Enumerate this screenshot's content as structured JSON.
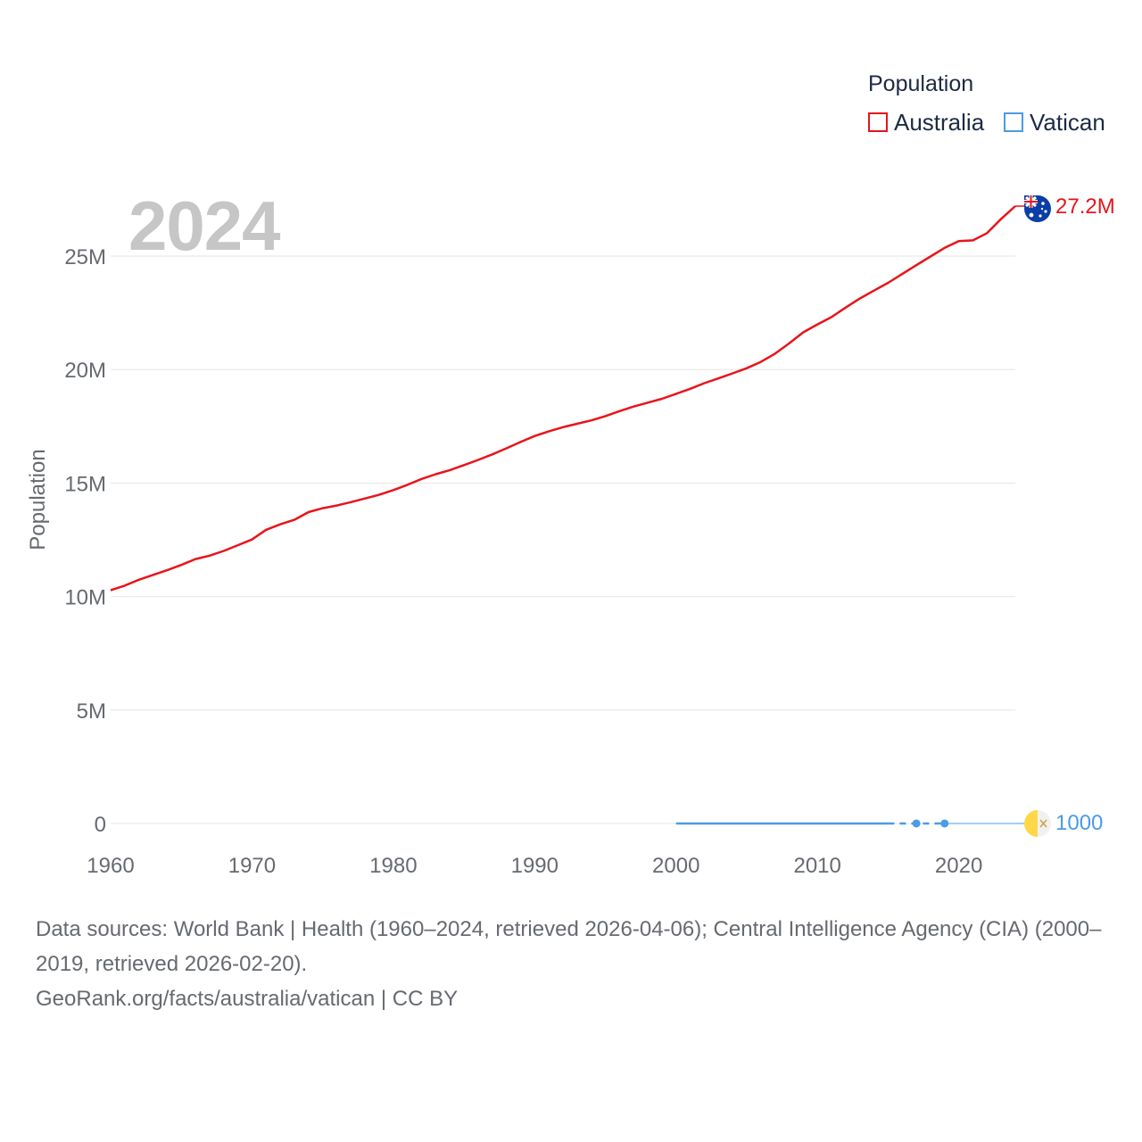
{
  "legend": {
    "title": "Population",
    "items": [
      {
        "label": "Australia",
        "color": "#e8141b"
      },
      {
        "label": "Vatican",
        "color": "#4a9be8"
      }
    ]
  },
  "year_label": "2024",
  "end_labels": {
    "australia": "27.2M",
    "vatican": "1000"
  },
  "footer": {
    "sources": "Data sources: World Bank | Health (1960–2024, retrieved 2026-04-06); Central Intelligence Agency (CIA) (2000–2019, retrieved 2026-02-20).",
    "link": "GeoRank.org/facts/australia/vatican | CC BY"
  },
  "chart_data": {
    "type": "line",
    "title": "",
    "xlabel": "",
    "ylabel": "Population",
    "xlim": [
      1960,
      2024
    ],
    "ylim": [
      0,
      27500000
    ],
    "x_ticks": [
      1960,
      1970,
      1980,
      1990,
      2000,
      2010,
      2020
    ],
    "x_tick_labels": [
      "1960",
      "1970",
      "1980",
      "1990",
      "2000",
      "2010",
      "2020"
    ],
    "y_ticks": [
      0,
      5000000,
      10000000,
      15000000,
      20000000,
      25000000
    ],
    "y_tick_labels": [
      "0",
      "5M",
      "10M",
      "15M",
      "20M",
      "25M"
    ],
    "grid": true,
    "series": [
      {
        "name": "Australia",
        "color": "#e8141b",
        "x": [
          1960,
          1961,
          1962,
          1963,
          1964,
          1965,
          1966,
          1967,
          1968,
          1969,
          1970,
          1971,
          1972,
          1973,
          1974,
          1975,
          1976,
          1977,
          1978,
          1979,
          1980,
          1981,
          1982,
          1983,
          1984,
          1985,
          1986,
          1987,
          1988,
          1989,
          1990,
          1991,
          1992,
          1993,
          1994,
          1995,
          1996,
          1997,
          1998,
          1999,
          2000,
          2001,
          2002,
          2003,
          2004,
          2005,
          2006,
          2007,
          2008,
          2009,
          2010,
          2011,
          2012,
          2013,
          2014,
          2015,
          2016,
          2017,
          2018,
          2019,
          2020,
          2021,
          2022,
          2023,
          2024
        ],
        "values": [
          10280000,
          10480000,
          10740000,
          10950000,
          11160000,
          11390000,
          11650000,
          11800000,
          12010000,
          12260000,
          12510000,
          12940000,
          13180000,
          13380000,
          13720000,
          13890000,
          14010000,
          14160000,
          14320000,
          14480000,
          14690000,
          14920000,
          15180000,
          15390000,
          15570000,
          15790000,
          16020000,
          16260000,
          16530000,
          16810000,
          17070000,
          17280000,
          17460000,
          17610000,
          17760000,
          17950000,
          18170000,
          18370000,
          18540000,
          18710000,
          18930000,
          19150000,
          19400000,
          19610000,
          19830000,
          20060000,
          20340000,
          20700000,
          21150000,
          21640000,
          21990000,
          22310000,
          22730000,
          23130000,
          23480000,
          23820000,
          24210000,
          24600000,
          24980000,
          25360000,
          25660000,
          25690000,
          26010000,
          26640000,
          27200000
        ]
      },
      {
        "name": "Vatican",
        "color": "#4a9be8",
        "x": [
          2000,
          2001,
          2002,
          2003,
          2004,
          2005,
          2006,
          2007,
          2008,
          2009,
          2010,
          2011,
          2012,
          2013,
          2014,
          2015,
          2017,
          2019,
          2024
        ],
        "values": [
          880,
          890,
          900,
          900,
          910,
          920,
          920,
          930,
          930,
          930,
          940,
          950,
          960,
          970,
          980,
          1000,
          1000,
          1000,
          1000
        ],
        "markers_at": [
          2017,
          2019
        ]
      }
    ]
  }
}
